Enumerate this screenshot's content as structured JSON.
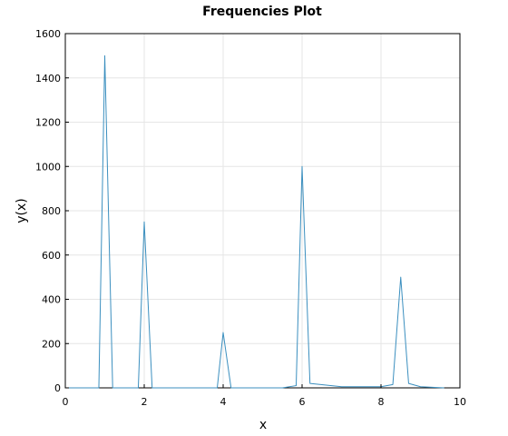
{
  "chart_data": {
    "type": "line",
    "title": "Frequencies Plot",
    "xlabel": "x",
    "ylabel": "y(x)",
    "xlim": [
      0,
      10
    ],
    "ylim": [
      0,
      1600
    ],
    "xticks": [
      0,
      2,
      4,
      6,
      8,
      10
    ],
    "yticks": [
      0,
      200,
      400,
      600,
      800,
      1000,
      1200,
      1400,
      1600
    ],
    "grid": true,
    "legend": "none",
    "series": [
      {
        "color": "#3b8fbf",
        "x": [
          0,
          0.85,
          1.0,
          1.2,
          1.85,
          2.0,
          2.2,
          3.85,
          4.0,
          4.2,
          5.5,
          5.85,
          6.0,
          6.2,
          7.0,
          8.0,
          8.3,
          8.5,
          8.7,
          9.0,
          9.6
        ],
        "y": [
          0,
          0,
          1500,
          0,
          0,
          750,
          0,
          0,
          250,
          0,
          0,
          10,
          1000,
          20,
          5,
          5,
          15,
          500,
          20,
          5,
          0
        ]
      }
    ]
  }
}
